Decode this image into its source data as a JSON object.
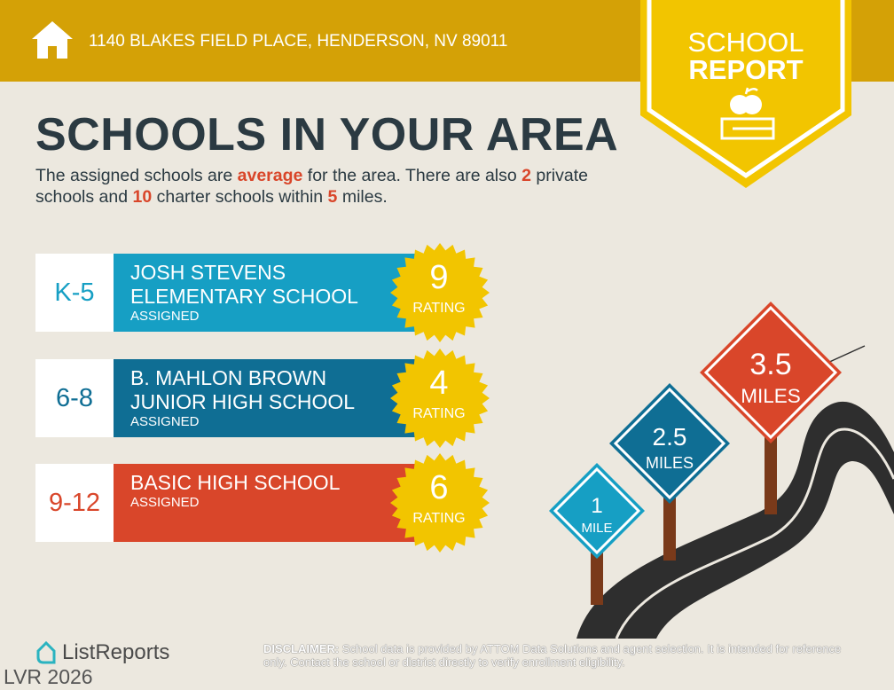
{
  "header": {
    "address": "1140 BLAKES FIELD PLACE, HENDERSON, NV 89011",
    "icon": "home-icon"
  },
  "badge": {
    "line1": "SCHOOL",
    "line2": "REPORT",
    "icon": "apple-book-icon"
  },
  "title": "SCHOOLS IN YOUR AREA",
  "intro": {
    "p1": "The assigned schools are ",
    "quality": "average",
    "p2": " for the area. There are also ",
    "private_count": "2",
    "p3": " private schools and ",
    "charter_count": "10",
    "p4": " charter schools within ",
    "miles": "5",
    "p5": " miles."
  },
  "schools": [
    {
      "grade": "K-5",
      "name1": "JOSH STEVENS",
      "name2": "ELEMENTARY SCHOOL",
      "status": "ASSIGNED",
      "rating": "9",
      "rating_label": "RATING",
      "color": "#169fc4",
      "grade_color": "#169fc4"
    },
    {
      "grade": "6-8",
      "name1": "B. MAHLON BROWN",
      "name2": "JUNIOR HIGH SCHOOL",
      "status": "ASSIGNED",
      "rating": "4",
      "rating_label": "RATING",
      "color": "#0f6e94",
      "grade_color": "#0f6e94"
    },
    {
      "grade": "9-12",
      "name1": "BASIC HIGH SCHOOL",
      "name2": "",
      "status": "ASSIGNED",
      "rating": "6",
      "rating_label": "RATING",
      "color": "#d9462a",
      "grade_color": "#d9462a"
    }
  ],
  "signs": [
    {
      "value": "1",
      "unit": "MILE",
      "color": "#169fc4"
    },
    {
      "value": "2.5",
      "unit": "MILES",
      "color": "#0f6e94"
    },
    {
      "value": "3.5",
      "unit": "MILES",
      "color": "#d9462a"
    }
  ],
  "footer": {
    "brand": "ListReports",
    "disclaimer_label": "DISCLAIMER:",
    "disclaimer": " School data is provided by ATTOM Data Solutions and agent selection. It is intended for reference only. Contact the school or district directly to verify enrollment eligibility.",
    "watermark": "LVR 2026"
  },
  "colors": {
    "header": "#d4a106",
    "badge": "#f2c500",
    "title": "#2b3a42",
    "accent": "#d9462a"
  }
}
